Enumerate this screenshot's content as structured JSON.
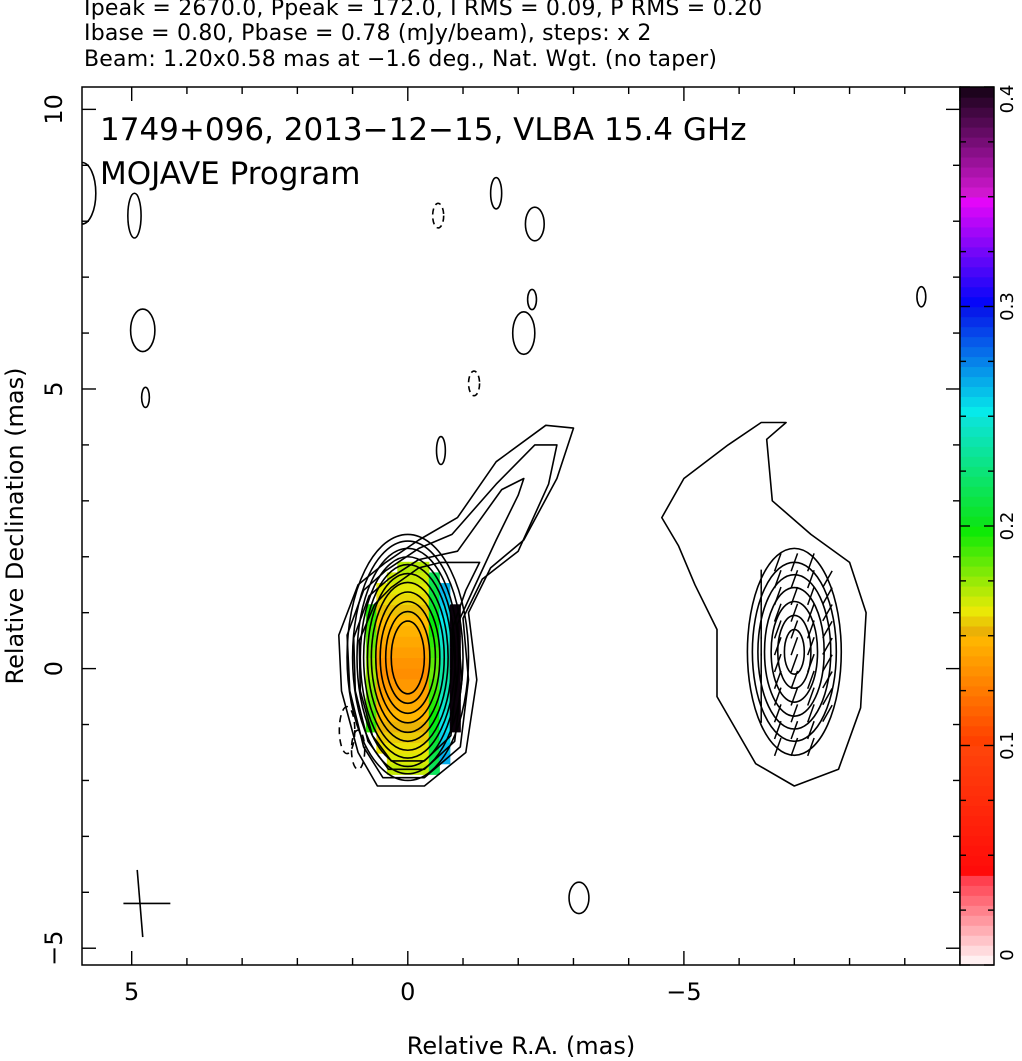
{
  "header": {
    "line1": "Ipeak = 2670.0, Ppeak = 172.0, I RMS = 0.09, P RMS = 0.20",
    "line2": "Ibase = 0.80, Pbase = 0.78 (mJy/beam), steps: x 2",
    "line3": "Beam: 1.20x0.58 mas at −1.6 deg., Nat. Wgt. (no taper)"
  },
  "chart_data": {
    "type": "heatmap",
    "title": "1749+096, 2013−12−15, VLBA 15.4 GHz",
    "subtitle": "MOJAVE Program",
    "xlabel": "Relative R.A. (mas)",
    "ylabel": "Relative Declination (mas)",
    "xlim": [
      5.9,
      -10.0
    ],
    "ylim": [
      -5.3,
      10.4
    ],
    "x_ticks": [
      5,
      0,
      -5
    ],
    "x_tick_labels": [
      "5",
      "0",
      "−5"
    ],
    "y_ticks": [
      -5,
      0,
      5,
      10
    ],
    "y_tick_labels": [
      "−5",
      "0",
      "5",
      "10"
    ],
    "colorbar": {
      "min": 0,
      "max": 0.4,
      "ticks": [
        0,
        0.1,
        0.2,
        0.3,
        0.4
      ],
      "tick_labels": [
        "0",
        "0.1",
        "0.2",
        "0.3",
        "0.4"
      ]
    },
    "left_panel": {
      "center_ra": 0.0,
      "center_dec": 0.05,
      "contour_levels_mJy": [
        0.8,
        1.6,
        3.2,
        6.4,
        12.8,
        25.6,
        51.2,
        102.4,
        204.8,
        409.6,
        819.2,
        1638.4
      ],
      "polarized_intensity_region": {
        "ra_range": [
          0.95,
          -1.0
        ],
        "dec_range": [
          -1.7,
          2.1
        ]
      }
    },
    "right_panel": {
      "center_ra": -7.0,
      "center_dec": 0.3,
      "contents": "polarized intensity contours with EVPA ticks"
    },
    "beam": {
      "major_mas": 1.2,
      "minor_mas": 0.58,
      "pa_deg": -1.6,
      "ra": 4.85,
      "dec": -4.2
    }
  }
}
